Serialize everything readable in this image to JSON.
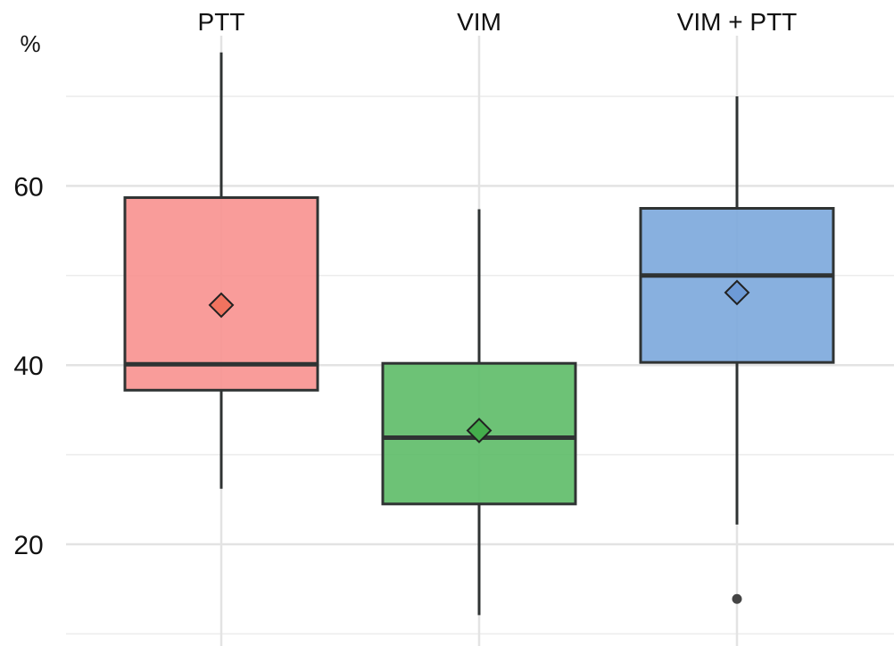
{
  "chart_data": {
    "type": "boxplot",
    "y_unit": "%",
    "ylim": [
      10,
      74
    ],
    "y_ticks": [
      20,
      40,
      60
    ],
    "grid": true,
    "x_categories_position": "top",
    "groups": [
      {
        "label": "PTT",
        "color": "#f8918f",
        "mean_color": "#f0735f",
        "whisker_low": 26.2,
        "q1": 37.2,
        "median": 40.1,
        "q3": 58.7,
        "whisker_high": 74.9,
        "mean": 46.7,
        "outliers": []
      },
      {
        "label": "VIM",
        "color": "#5dbb67",
        "mean_color": "#44ad4c",
        "whisker_low": 12.1,
        "q1": 24.5,
        "median": 31.9,
        "q3": 40.2,
        "whisker_high": 57.4,
        "mean": 32.7,
        "outliers": []
      },
      {
        "label": "VIM + PTT",
        "color": "#7ba7dc",
        "mean_color": "#6d9ad6",
        "whisker_low": 22.2,
        "q1": 40.3,
        "median": 50.0,
        "q3": 57.5,
        "whisker_high": 70.0,
        "mean": 48.1,
        "outliers": [
          13.9
        ]
      }
    ]
  }
}
